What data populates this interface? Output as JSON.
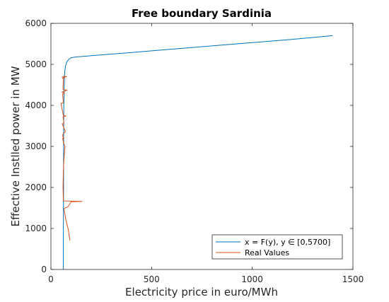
{
  "chart_data": {
    "type": "line",
    "title": "Free boundary Sardinia",
    "xlabel": "Electricity price in euro/MWh",
    "ylabel": "Effective Instlled power in MW",
    "xlim": [
      0,
      1500
    ],
    "ylim": [
      0,
      6000
    ],
    "xticks": [
      0,
      500,
      1000,
      1500
    ],
    "yticks": [
      0,
      1000,
      2000,
      3000,
      4000,
      5000,
      6000
    ],
    "grid": false,
    "legend_position": "bottom-right",
    "series": [
      {
        "name": "x = F(y),  y ∈ [0,5700]",
        "color": "#0072bd",
        "x": [
          62,
          62,
          63,
          63,
          64,
          66,
          68,
          72,
          78,
          88,
          100,
          120,
          200,
          400,
          600,
          800,
          1000,
          1200,
          1400
        ],
        "y": [
          0,
          1000,
          2000,
          3000,
          4000,
          4500,
          4800,
          4950,
          5050,
          5120,
          5160,
          5180,
          5210,
          5290,
          5370,
          5450,
          5530,
          5610,
          5700
        ]
      },
      {
        "name": "Real Values",
        "color": "#d95319",
        "x": [
          95,
          85,
          75,
          68,
          65,
          70,
          85,
          100,
          155,
          62,
          60,
          62,
          65,
          70,
          62,
          60,
          58,
          65,
          58,
          60,
          72,
          60,
          56,
          65,
          60,
          75,
          62,
          50,
          62,
          58,
          68,
          55,
          80,
          60,
          60,
          62,
          58,
          68,
          55,
          78,
          62
        ],
        "y": [
          700,
          1000,
          1200,
          1380,
          1480,
          1500,
          1530,
          1650,
          1660,
          1670,
          2000,
          2400,
          2700,
          3000,
          3100,
          3150,
          3200,
          3200,
          3250,
          3300,
          3360,
          3500,
          3550,
          3560,
          3720,
          3740,
          3750,
          4050,
          4060,
          4280,
          4300,
          4320,
          4370,
          4390,
          4420,
          4650,
          4660,
          4680,
          4690,
          4700,
          4710
        ]
      }
    ]
  }
}
